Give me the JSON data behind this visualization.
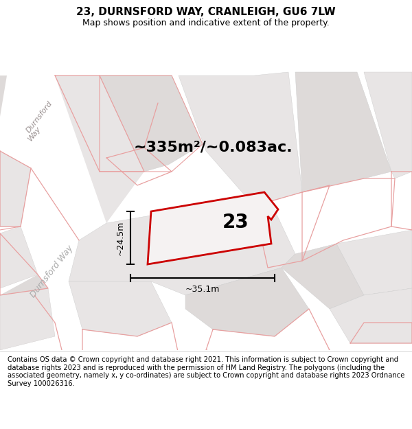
{
  "title": "23, DURNSFORD WAY, CRANLEIGH, GU6 7LW",
  "subtitle": "Map shows position and indicative extent of the property.",
  "area_text": "~335m²/~0.083ac.",
  "label_23": "23",
  "dim_height": "~24.5m",
  "dim_width": "~35.1m",
  "road_label1": "Durnsford",
  "road_label2": "Way",
  "road_label3": "Durnsford Way",
  "footer": "Contains OS data © Crown copyright and database right 2021. This information is subject to Crown copyright and database rights 2023 and is reproduced with the permission of HM Land Registry. The polygons (including the associated geometry, namely x, y co-ordinates) are subject to Crown copyright and database rights 2023 Ordnance Survey 100026316.",
  "map_bg": "#f5f3f3",
  "road_fill": "#ffffff",
  "block_fill_light": "#e8e5e5",
  "block_fill_mid": "#dedad9",
  "pink_outline": "#e8a0a0",
  "red_outline": "#cc0000",
  "prop_fill": "#f0eeee",
  "title_fontsize": 11,
  "subtitle_fontsize": 9,
  "area_fontsize": 16,
  "label_fontsize": 20,
  "footer_fontsize": 7.2,
  "road_label_fontsize": 9,
  "dim_fontsize": 9
}
